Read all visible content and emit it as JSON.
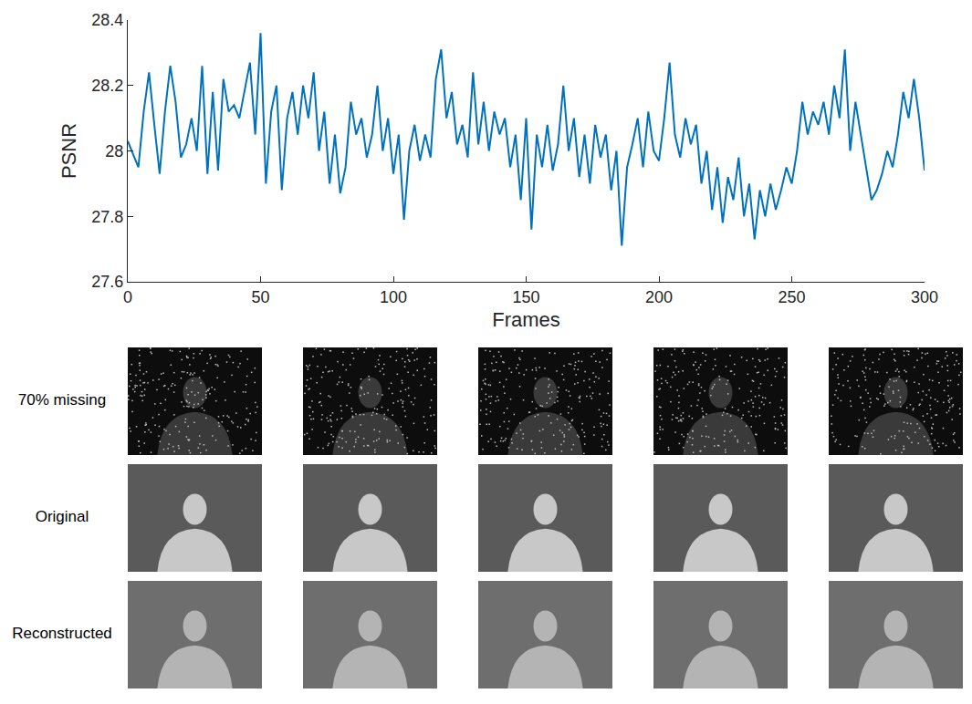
{
  "chart_data": {
    "type": "line",
    "x_label": "Frames",
    "y_label": "PSNR",
    "xlim": [
      0,
      300
    ],
    "xticks": [
      0,
      50,
      100,
      150,
      200,
      250,
      300
    ],
    "ylim": [
      27.6,
      28.4
    ],
    "yticks": [
      27.6,
      27.8,
      {
        "value": 28,
        "label": "28"
      },
      28.2,
      28.4
    ],
    "grid": false,
    "color": "#0072bd",
    "x": [
      0,
      2,
      4,
      6,
      8,
      10,
      12,
      14,
      16,
      18,
      20,
      22,
      24,
      26,
      28,
      30,
      32,
      34,
      36,
      38,
      40,
      42,
      44,
      46,
      48,
      50,
      52,
      54,
      56,
      58,
      60,
      62,
      64,
      66,
      68,
      70,
      72,
      74,
      76,
      78,
      80,
      82,
      84,
      86,
      88,
      90,
      92,
      94,
      96,
      98,
      100,
      102,
      104,
      106,
      108,
      110,
      112,
      114,
      116,
      118,
      120,
      122,
      124,
      126,
      128,
      130,
      132,
      134,
      136,
      138,
      140,
      142,
      144,
      146,
      148,
      150,
      152,
      154,
      156,
      158,
      160,
      162,
      164,
      166,
      168,
      170,
      172,
      174,
      176,
      178,
      180,
      182,
      184,
      186,
      188,
      190,
      192,
      194,
      196,
      198,
      200,
      202,
      204,
      206,
      208,
      210,
      212,
      214,
      216,
      218,
      220,
      222,
      224,
      226,
      228,
      230,
      232,
      234,
      236,
      238,
      240,
      242,
      244,
      246,
      248,
      250,
      252,
      254,
      256,
      258,
      260,
      262,
      264,
      266,
      268,
      270,
      272,
      274,
      276,
      278,
      280,
      282,
      284,
      286,
      288,
      290,
      292,
      294,
      296,
      298,
      300
    ],
    "values": [
      28.03,
      27.99,
      27.95,
      28.12,
      28.24,
      28.08,
      27.93,
      28.12,
      28.26,
      28.15,
      27.98,
      28.02,
      28.1,
      28.0,
      28.26,
      27.93,
      28.18,
      27.94,
      28.22,
      28.12,
      28.14,
      28.1,
      28.19,
      28.27,
      28.05,
      28.36,
      27.9,
      28.12,
      28.2,
      27.88,
      28.1,
      28.18,
      28.05,
      28.2,
      28.1,
      28.24,
      28.0,
      28.12,
      27.9,
      28.05,
      27.87,
      27.95,
      28.15,
      28.05,
      28.1,
      27.98,
      28.05,
      28.2,
      28.0,
      28.1,
      27.93,
      28.05,
      27.79,
      28.0,
      28.08,
      27.97,
      28.05,
      27.98,
      28.22,
      28.31,
      28.1,
      28.18,
      28.02,
      28.08,
      27.98,
      28.24,
      28.02,
      28.15,
      28.0,
      28.12,
      28.05,
      28.1,
      27.95,
      28.05,
      27.85,
      28.1,
      27.76,
      28.05,
      27.95,
      28.08,
      27.94,
      28.02,
      28.2,
      28.0,
      28.1,
      27.92,
      28.05,
      27.9,
      28.08,
      27.98,
      28.05,
      27.88,
      28.0,
      27.71,
      27.95,
      28.02,
      28.1,
      27.95,
      28.12,
      28.0,
      27.97,
      28.1,
      28.27,
      28.05,
      27.98,
      28.1,
      28.02,
      28.08,
      27.9,
      28.0,
      27.82,
      27.95,
      27.78,
      27.92,
      27.85,
      27.98,
      27.8,
      27.9,
      27.73,
      27.88,
      27.8,
      27.9,
      27.82,
      27.88,
      27.95,
      27.9,
      28.0,
      28.15,
      28.05,
      28.12,
      28.08,
      28.15,
      28.05,
      28.2,
      28.1,
      28.31,
      28.0,
      28.15,
      28.05,
      27.95,
      27.85,
      27.88,
      27.93,
      28.0,
      27.95,
      28.05,
      28.18,
      28.1,
      28.22,
      28.1,
      27.94
    ]
  },
  "image_grid": {
    "rows": [
      "70% missing",
      "Original",
      "Reconstructed"
    ],
    "columns": 5
  }
}
